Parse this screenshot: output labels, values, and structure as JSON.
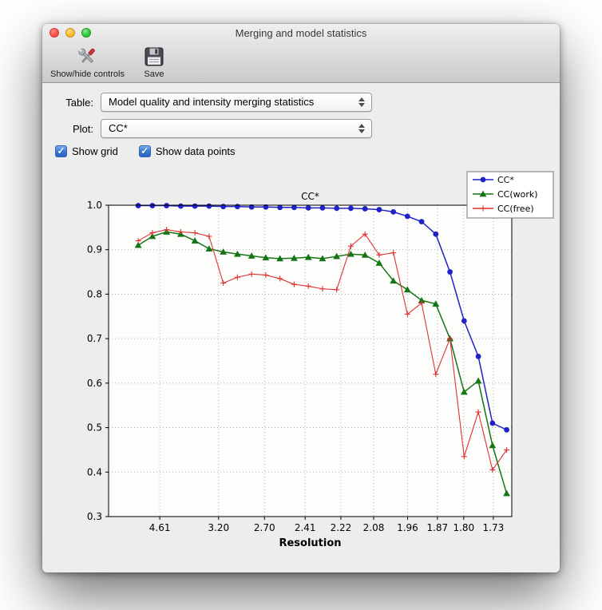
{
  "window": {
    "title": "Merging and model statistics"
  },
  "toolbar": {
    "items": [
      {
        "label": "Show/hide controls",
        "icon": "tools-icon"
      },
      {
        "label": "Save",
        "icon": "save-icon"
      }
    ]
  },
  "controls": {
    "table_label": "Table:",
    "table_value": "Model quality and intensity merging statistics",
    "plot_label": "Plot:",
    "plot_value": "CC*",
    "checkboxes": [
      {
        "label": "Show grid",
        "checked": true
      },
      {
        "label": "Show data points",
        "checked": true
      }
    ]
  },
  "icons": {
    "check": "✓"
  },
  "chart_data": {
    "type": "line",
    "title": "CC*",
    "xlabel": "Resolution",
    "ylabel": "",
    "ylim": [
      0.3,
      1.0
    ],
    "yticks": [
      0.3,
      0.4,
      0.5,
      0.6,
      0.7,
      0.8,
      0.9,
      1.0
    ],
    "grid": true,
    "grid_style": "dotted",
    "legend_position": "upper right",
    "x_axis": {
      "scale": "1/d^2",
      "range": [
        0.003,
        0.35
      ],
      "tick_labels": [
        "4.61",
        "3.20",
        "2.70",
        "2.41",
        "2.22",
        "2.08",
        "1.96",
        "1.87",
        "1.80",
        "1.73"
      ]
    },
    "x_values": [
      0.0285,
      0.0407,
      0.0529,
      0.0651,
      0.0773,
      0.0895,
      0.1017,
      0.1139,
      0.1261,
      0.1383,
      0.1505,
      0.1627,
      0.1749,
      0.1871,
      0.1993,
      0.2115,
      0.2237,
      0.2359,
      0.2481,
      0.2602,
      0.2724,
      0.2846,
      0.2968,
      0.309,
      0.3212,
      0.3334,
      0.3456
    ],
    "series": [
      {
        "name": "CC*",
        "color": "#2121c8",
        "marker": "circle",
        "values": [
          0.999,
          0.999,
          0.999,
          0.998,
          0.998,
          0.998,
          0.997,
          0.997,
          0.996,
          0.996,
          0.995,
          0.995,
          0.994,
          0.994,
          0.993,
          0.993,
          0.992,
          0.99,
          0.985,
          0.975,
          0.963,
          0.935,
          0.85,
          0.74,
          0.66,
          0.51,
          0.495
        ]
      },
      {
        "name": "CC(work)",
        "color": "#147514",
        "marker": "triangle",
        "values": [
          0.91,
          0.93,
          0.94,
          0.935,
          0.92,
          0.902,
          0.895,
          0.89,
          0.886,
          0.882,
          0.88,
          0.881,
          0.883,
          0.88,
          0.885,
          0.89,
          0.888,
          0.87,
          0.83,
          0.81,
          0.786,
          0.778,
          0.7,
          0.58,
          0.605,
          0.46,
          0.352
        ]
      },
      {
        "name": "CC(free)",
        "color": "#e03030",
        "marker": "plus",
        "values": [
          0.92,
          0.938,
          0.945,
          0.94,
          0.938,
          0.93,
          0.825,
          0.838,
          0.845,
          0.843,
          0.835,
          0.822,
          0.818,
          0.812,
          0.81,
          0.908,
          0.935,
          0.888,
          0.893,
          0.755,
          0.78,
          0.62,
          0.7,
          0.435,
          0.535,
          0.405,
          0.45
        ]
      }
    ]
  }
}
